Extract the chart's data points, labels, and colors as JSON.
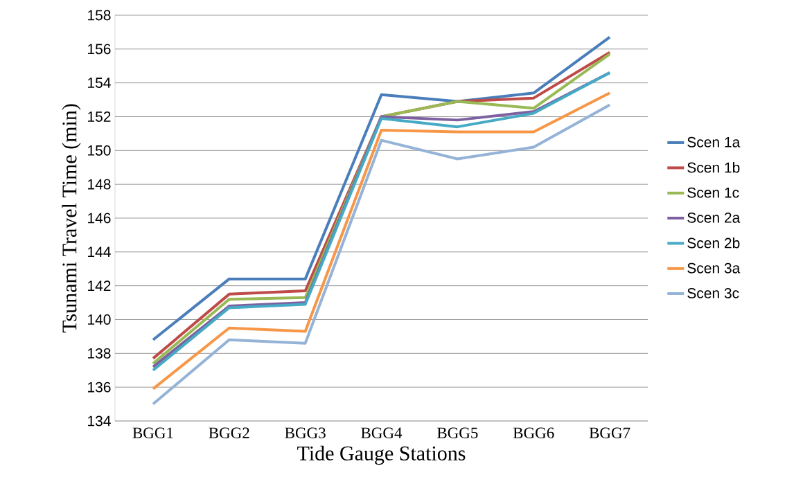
{
  "chart_data": {
    "type": "line",
    "xlabel": "Tide Gauge Stations",
    "ylabel": "Tsunami Travel Time (min)",
    "categories": [
      "BGG1",
      "BGG2",
      "BGG3",
      "BGG4",
      "BGG5",
      "BGG6",
      "BGG7"
    ],
    "ylim": [
      134,
      158
    ],
    "yticks": [
      134,
      136,
      138,
      140,
      142,
      144,
      146,
      148,
      150,
      152,
      154,
      156,
      158
    ],
    "grid": "y",
    "legend": "right",
    "marker": "none",
    "series": [
      {
        "name": "Scen 1a",
        "color": "#4a7ebb",
        "values": [
          138.8,
          142.4,
          142.4,
          153.3,
          152.9,
          153.4,
          156.7
        ]
      },
      {
        "name": "Scen 1b",
        "color": "#be4b48",
        "values": [
          137.7,
          141.5,
          141.7,
          152.0,
          152.9,
          153.1,
          155.8
        ]
      },
      {
        "name": "Scen 1c",
        "color": "#98b954",
        "values": [
          137.4,
          141.2,
          141.3,
          152.0,
          152.9,
          152.5,
          155.7
        ]
      },
      {
        "name": "Scen 2a",
        "color": "#7d60a0",
        "values": [
          137.2,
          140.8,
          141.0,
          152.0,
          151.8,
          152.3,
          154.6
        ]
      },
      {
        "name": "Scen 2b",
        "color": "#46aac5",
        "values": [
          137.0,
          140.7,
          140.9,
          151.9,
          151.4,
          152.2,
          154.6
        ]
      },
      {
        "name": "Scen 3a",
        "color": "#f79646",
        "values": [
          135.9,
          139.5,
          139.3,
          151.2,
          151.1,
          151.1,
          153.4
        ]
      },
      {
        "name": "Scen 3c",
        "color": "#95b3d7",
        "values": [
          135.0,
          138.8,
          138.6,
          150.6,
          149.5,
          150.2,
          152.7
        ]
      }
    ]
  }
}
